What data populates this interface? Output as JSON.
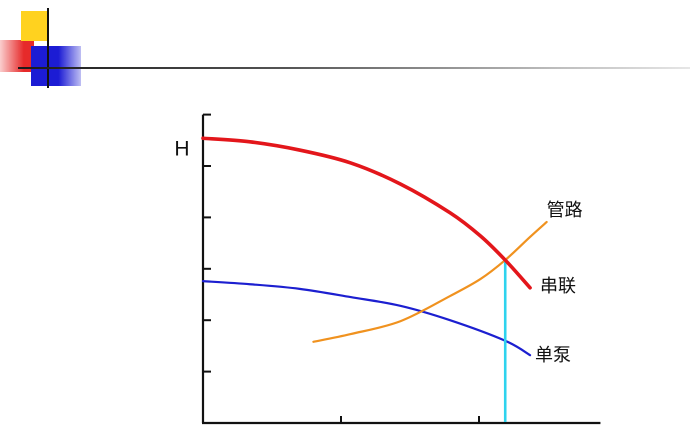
{
  "theme": {
    "decor_yellow": "#ffd21f",
    "decor_red": "#e62a2a",
    "decor_blue": "#1c1cd4",
    "rule_line": "#1a1a1a"
  },
  "chart_data": {
    "type": "line",
    "ylabel": "H",
    "xlim": [
      0,
      2.88
    ],
    "ylim": [
      0,
      6
    ],
    "x_ticks": [
      1,
      2
    ],
    "y_ticks": [
      1,
      2,
      3,
      4,
      5,
      6
    ],
    "grid": false,
    "legend": "none",
    "series": [
      {
        "name": "串联",
        "color": "#e3161b",
        "x": [
          0,
          0.34,
          0.7,
          1.07,
          1.43,
          1.79,
          2.01,
          2.19,
          2.37
        ],
        "y": [
          5.54,
          5.47,
          5.31,
          5.06,
          4.65,
          4.09,
          3.64,
          3.17,
          2.63
        ]
      },
      {
        "name": "单泵",
        "color": "#1c1fd0",
        "x": [
          0,
          0.34,
          0.7,
          1.07,
          1.43,
          1.79,
          2.19,
          2.37
        ],
        "y": [
          2.76,
          2.7,
          2.61,
          2.45,
          2.28,
          2.0,
          1.6,
          1.32
        ]
      },
      {
        "name": "管路",
        "color": "#f0921f",
        "x": [
          0.8,
          1.07,
          1.43,
          1.79,
          2.01,
          2.19,
          2.37,
          2.49
        ],
        "y": [
          1.58,
          1.73,
          1.98,
          2.47,
          2.8,
          3.17,
          3.62,
          3.91
        ]
      }
    ],
    "operating_point": {
      "x": 2.19,
      "y": 3.17,
      "color": "#2ed3ee"
    }
  }
}
